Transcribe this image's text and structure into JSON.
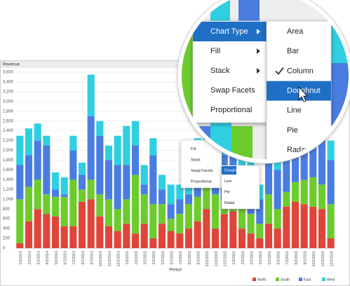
{
  "chart_data": {
    "type": "stacked-bar",
    "title": "Revenue",
    "x_label": "Period",
    "categories": [
      "1/2/2014",
      "2/2/2014",
      "3/2/2014",
      "4/2/2014",
      "5/2/2014",
      "6/2/2014",
      "7/2/2014",
      "8/2/2014",
      "9/2/2014",
      "10/2/2014",
      "11/2/2014",
      "12/2/2014",
      "1/2/2015",
      "2/2/2015",
      "3/2/2015",
      "4/2/2015",
      "5/2/2015",
      "6/2/2015",
      "7/2/2015",
      "8/2/2015",
      "9/2/2015",
      "10/2/2015",
      "11/2/2015",
      "12/2/2015",
      "1/2/2016",
      "2/2/2016",
      "3/2/2016",
      "4/2/2016",
      "5/2/2016",
      "6/2/2016",
      "7/2/2016",
      "8/2/2016",
      "9/2/2016",
      "10/2/2016",
      "11/2/2016",
      "12/2/2016"
    ],
    "series": [
      {
        "name": "North",
        "color": "#e0453a",
        "values": [
          100,
          550,
          800,
          700,
          650,
          450,
          450,
          950,
          1000,
          650,
          450,
          350,
          500,
          300,
          500,
          200,
          500,
          350,
          300,
          400,
          550,
          800,
          400,
          700,
          750,
          400,
          300,
          200,
          500,
          400,
          850,
          950,
          900,
          850,
          800,
          200
        ]
      },
      {
        "name": "South",
        "color": "#6ccc2e",
        "values": [
          900,
          700,
          600,
          400,
          400,
          600,
          950,
          250,
          400,
          450,
          550,
          450,
          500,
          1200,
          600,
          700,
          400,
          250,
          400,
          500,
          500,
          500,
          700,
          300,
          500,
          700,
          400,
          300,
          600,
          400,
          300,
          400,
          500,
          600,
          500,
          700
        ]
      },
      {
        "name": "East",
        "color": "#4a7de0",
        "values": [
          700,
          650,
          800,
          1000,
          150,
          50,
          600,
          300,
          1300,
          1200,
          800,
          900,
          700,
          600,
          200,
          1000,
          300,
          300,
          300,
          200,
          600,
          600,
          500,
          900,
          700,
          600,
          600,
          500,
          700,
          800,
          700,
          900,
          800,
          700,
          900,
          900
        ]
      },
      {
        "name": "West",
        "color": "#2fcfe0",
        "values": [
          600,
          550,
          350,
          200,
          350,
          350,
          300,
          250,
          850,
          300,
          300,
          600,
          800,
          500,
          400,
          350,
          300,
          400,
          300,
          400,
          600,
          700,
          500,
          600,
          600,
          500,
          500,
          300,
          400,
          500,
          500,
          400,
          500,
          400,
          500,
          400
        ]
      }
    ],
    "ylim": [
      0,
      3600
    ],
    "yticks": [
      0,
      200,
      400,
      600,
      800,
      {
        "value": 1000,
        "label": "1,000"
      },
      {
        "value": 1200,
        "label": "1,200"
      },
      {
        "value": 1400,
        "label": "1,400"
      },
      {
        "value": 1600,
        "label": "1,600"
      },
      {
        "value": 1800,
        "label": "1,800"
      },
      {
        "value": 2000,
        "label": "2,000"
      },
      {
        "value": 2200,
        "label": "2,200"
      },
      {
        "value": 2400,
        "label": "2,400"
      },
      {
        "value": 2600,
        "label": "2,600"
      },
      {
        "value": 2800,
        "label": "2,800"
      },
      {
        "value": 3000,
        "label": "3,000"
      },
      {
        "value": 3200,
        "label": "3,200"
      },
      {
        "value": 3400,
        "label": "3,400"
      },
      {
        "value": 3600,
        "label": "3,600"
      }
    ],
    "grid": true,
    "legend": "bottom-right"
  },
  "menu": {
    "items": [
      "Chart Type",
      "Fill",
      "Stack",
      "Swap Facets",
      "Proportional"
    ]
  },
  "submenu": {
    "items": [
      "Area",
      "Bar",
      "Column",
      "Doughnut",
      "Line",
      "Pie",
      "Radar"
    ],
    "checked": "Column",
    "highlighted": "Doughnut"
  }
}
